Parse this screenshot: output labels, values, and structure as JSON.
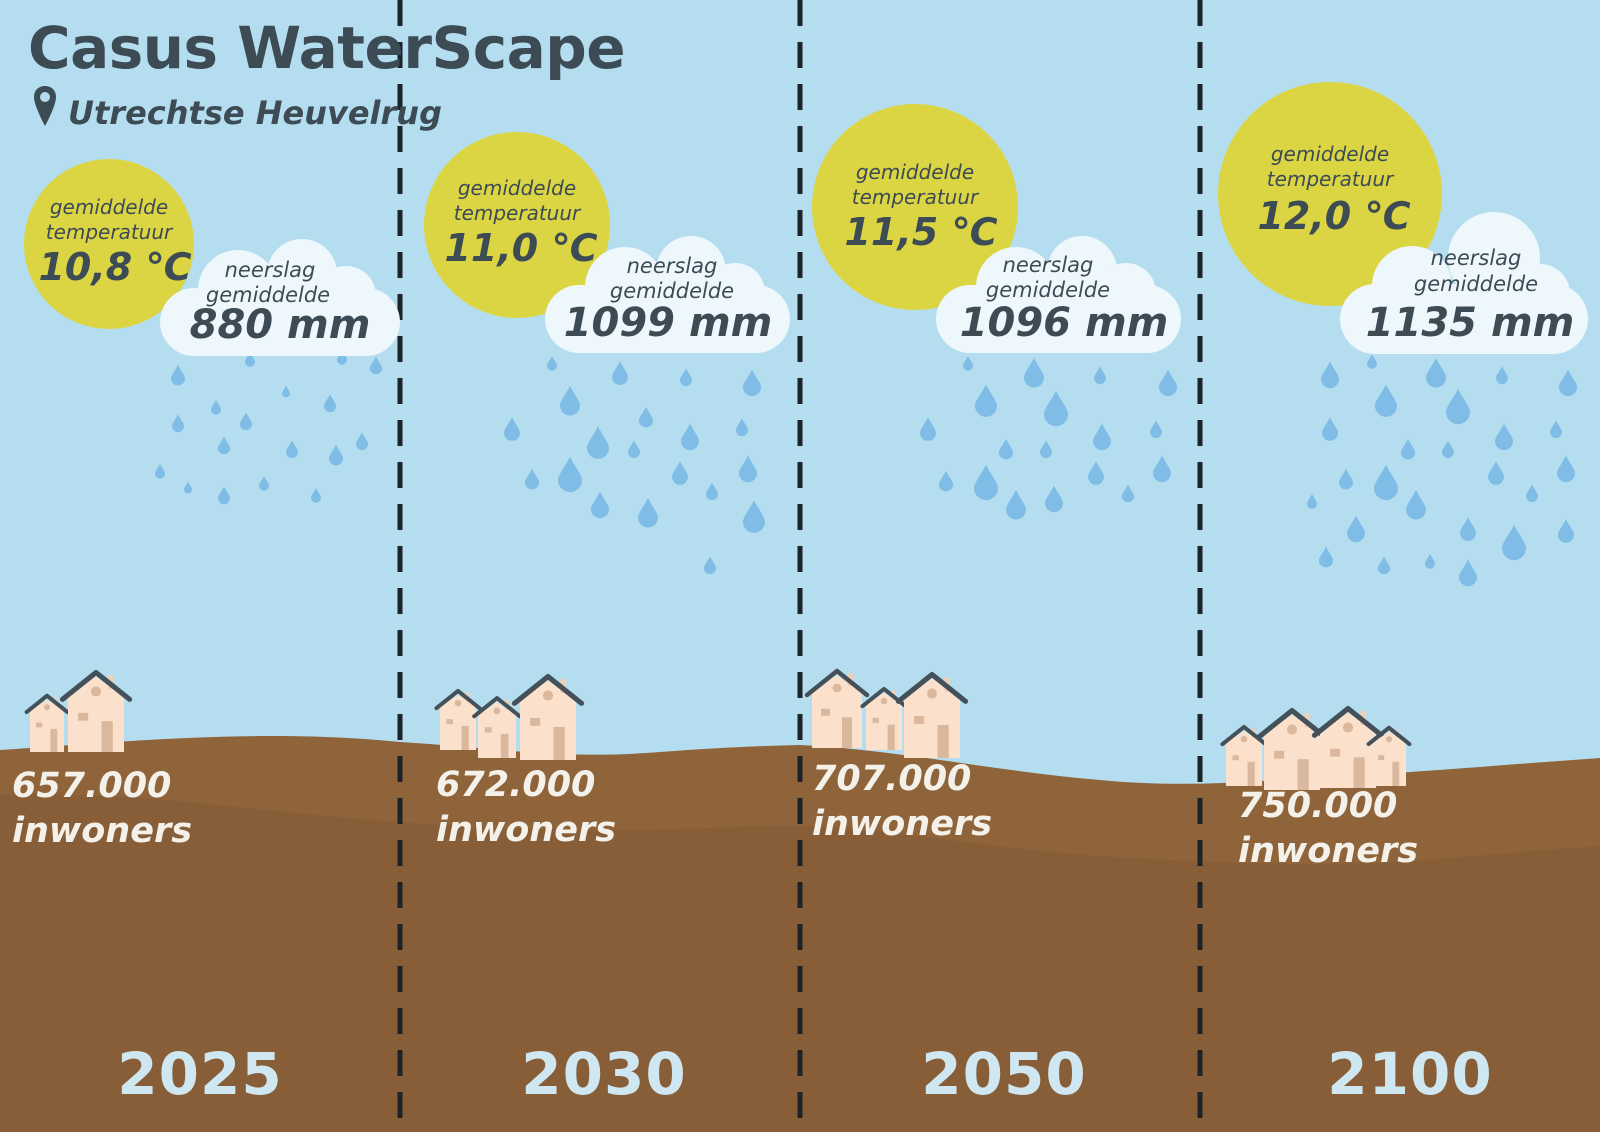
{
  "header": {
    "title": "Casus WaterScape",
    "location": "Utrechtse Heuvelrug",
    "location_icon": "map-pin-icon"
  },
  "colors": {
    "sky": "#b4def0",
    "soil_light": "#8f643a",
    "soil_dark": "#875e37",
    "sun": "#dcd543",
    "cloud": "#eef7fc",
    "rain": "#7fbce6",
    "house": "#fbe0cb",
    "roof": "#44505a",
    "text_dark": "#3d4b55",
    "text_light": "#f3f1ea",
    "year": "#cfe7f1"
  },
  "panels": [
    {
      "year": "2025",
      "temp_label_1": "gemiddelde",
      "temp_label_2": "temperatuur",
      "temp_value": "10,8 ℃",
      "rain_label_1": "neerslag",
      "rain_label_2": "gemiddelde",
      "rain_value": "880 mm",
      "population_value": "657.000",
      "population_unit": "inwoners"
    },
    {
      "year": "2030",
      "temp_label_1": "gemiddelde",
      "temp_label_2": "temperatuur",
      "temp_value": "11,0 ℃",
      "rain_label_1": "neerslag",
      "rain_label_2": "gemiddelde",
      "rain_value": "1099 mm",
      "population_value": "672.000",
      "population_unit": "inwoners"
    },
    {
      "year": "2050",
      "temp_label_1": "gemiddelde",
      "temp_label_2": "temperatuur",
      "temp_value": "11,5 ℃",
      "rain_label_1": "neerslag",
      "rain_label_2": "gemiddelde",
      "rain_value": "1096 mm",
      "population_value": "707.000",
      "population_unit": "inwoners"
    },
    {
      "year": "2100",
      "temp_label_1": "gemiddelde",
      "temp_label_2": "temperatuur",
      "temp_value": "12,0 ℃",
      "rain_label_1": "neerslag",
      "rain_label_2": "gemiddelde",
      "rain_value": "1135 mm",
      "population_value": "750.000",
      "population_unit": "inwoners"
    }
  ]
}
